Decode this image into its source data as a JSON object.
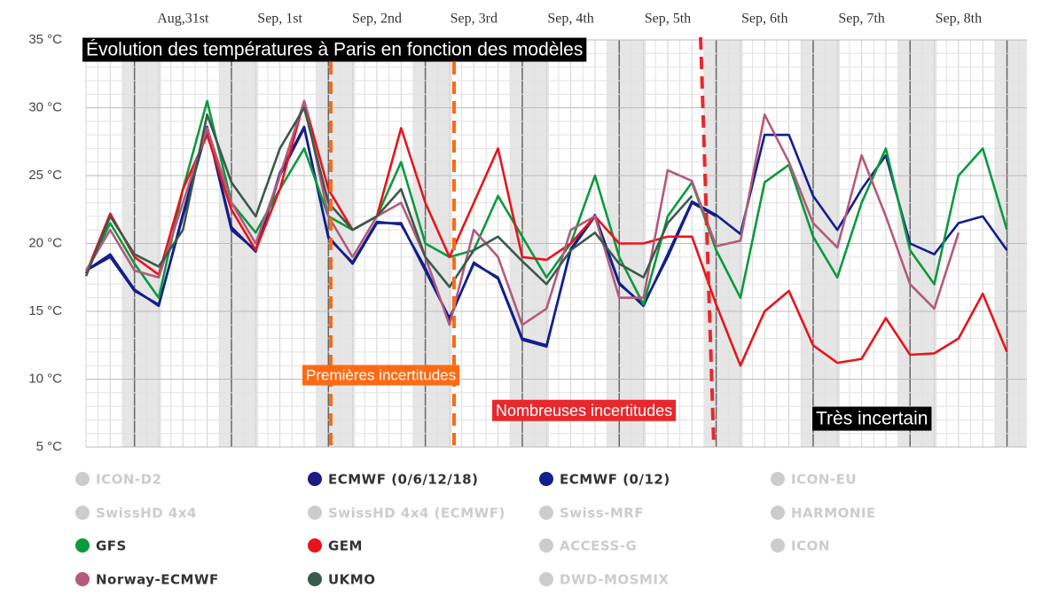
{
  "chart_data": {
    "type": "line",
    "title": "Évolution des températures à Paris en fonction des modèles",
    "annotations": [
      "Premières incertitudes",
      "Nombreuses incertitudes",
      "Très incertain"
    ],
    "categories": [
      null,
      null,
      null,
      null,
      "Aug,31st",
      null,
      null,
      null,
      "Sep, 1st",
      null,
      null,
      null,
      "Sep, 2nd",
      null,
      null,
      null,
      "Sep, 3rd",
      null,
      null,
      null,
      "Sep, 4th",
      null,
      null,
      null,
      "Sep, 5th",
      null,
      null,
      null,
      "Sep, 6th",
      null,
      null,
      null,
      "Sep, 7th",
      null,
      null,
      null,
      "Sep, 8th",
      null,
      null
    ],
    "ylim": [
      5,
      35
    ],
    "yticks": [
      {
        "value": 5,
        "label": "5 °C"
      },
      {
        "value": 10,
        "label": "10 °C"
      },
      {
        "value": 15,
        "label": "15 °C"
      },
      {
        "value": 20,
        "label": "20 °C"
      },
      {
        "value": 25,
        "label": "25 °C"
      },
      {
        "value": 30,
        "label": "30 °C"
      },
      {
        "value": 35,
        "label": "35 °C"
      }
    ],
    "grid": true,
    "series": [
      {
        "name": "ICON-D2",
        "color": "#cccccc",
        "visible": false
      },
      {
        "name": "ECMWF (0/6/12/18)",
        "color": "#1b1b86",
        "visible": true,
        "values": [
          18,
          19,
          16.5,
          15.5,
          22,
          28.5,
          21,
          19.5,
          25,
          28.5,
          20.5,
          18.5,
          21.5,
          21.5,
          18,
          14.5,
          18.5,
          17.5,
          13,
          12.5,
          19.5,
          22,
          17,
          15.5,
          19,
          23,
          22,
          null,
          null,
          null,
          null,
          null,
          null,
          null,
          null,
          null,
          null,
          null,
          null
        ]
      },
      {
        "name": "ECMWF (0/12)",
        "color": "#10208c",
        "visible": true,
        "values": [
          18,
          19.2,
          16.6,
          15.4,
          22.2,
          28.6,
          21.2,
          19.4,
          25.2,
          28.6,
          20.4,
          18.6,
          21.6,
          21.4,
          18.2,
          14.4,
          18.6,
          17.4,
          12.9,
          12.4,
          19.6,
          22.1,
          17.1,
          15.4,
          19.2,
          23.1,
          22.1,
          20.7,
          28,
          28,
          23.5,
          21,
          24,
          26.5,
          20,
          19.2,
          21.5,
          22,
          19.5
        ]
      },
      {
        "name": "ICON-EU",
        "color": "#cccccc",
        "visible": false
      },
      {
        "name": "SwissHD 4x4",
        "color": "#cccccc",
        "visible": false
      },
      {
        "name": "SwissHD 4x4 (ECMWF)",
        "color": "#cccccc",
        "visible": false
      },
      {
        "name": "Swiss-MRF",
        "color": "#cccccc",
        "visible": false
      },
      {
        "name": "HARMONIE",
        "color": "#cccccc",
        "visible": false
      },
      {
        "name": "GFS",
        "color": "#0b9a3c",
        "visible": true,
        "values": [
          17.8,
          21.5,
          18.5,
          16,
          24,
          30.5,
          23,
          20.8,
          24,
          27,
          22,
          21,
          22,
          26,
          20,
          19,
          19.5,
          23.5,
          20.5,
          17.5,
          20,
          25,
          19,
          15.5,
          22,
          24.5,
          19.5,
          16,
          24.5,
          25.8,
          20.5,
          17.5,
          23,
          27,
          19.5,
          17,
          25,
          27,
          21
        ]
      },
      {
        "name": "GEM",
        "color": "#e8141a",
        "visible": true,
        "values": [
          17.8,
          22.2,
          19,
          17.7,
          24,
          28,
          22.5,
          19.5,
          24,
          30.5,
          24,
          21,
          22,
          28.5,
          23,
          19,
          23,
          27,
          19,
          18.8,
          20,
          22,
          20,
          20,
          20.5,
          20.5,
          15.5,
          11,
          15,
          16.5,
          12.5,
          11.2,
          11.5,
          14.5,
          11.8,
          11.9,
          13,
          16.3,
          12
        ]
      },
      {
        "name": "ACCESS-G",
        "color": "#cccccc",
        "visible": false
      },
      {
        "name": "ICON",
        "color": "#cccccc",
        "visible": false
      },
      {
        "name": "Norway-ECMWF",
        "color": "#b35a7e",
        "visible": true,
        "values": [
          18,
          21,
          18,
          17.5,
          23,
          28.5,
          23,
          20,
          25,
          30.5,
          22,
          19,
          22,
          23,
          19,
          14,
          21,
          19,
          14,
          15.2,
          21,
          22,
          16,
          16,
          25.4,
          24.6,
          19.8,
          20.2,
          29.5,
          26,
          21.5,
          19.7,
          26.5,
          22,
          17,
          15.2,
          20.8,
          null,
          null
        ]
      },
      {
        "name": "UKMO",
        "color": "#3a5a4b",
        "visible": true,
        "values": [
          17.6,
          22,
          19.2,
          18.3,
          21,
          29.5,
          24.5,
          22,
          27,
          30,
          23,
          21,
          22,
          24,
          19,
          16.8,
          19.5,
          20.5,
          18.7,
          17,
          19.5,
          20.8,
          18.5,
          17.5,
          21.5,
          23.5,
          null,
          null,
          null,
          null,
          null,
          null,
          null,
          null,
          null,
          null,
          null,
          null,
          null
        ]
      },
      {
        "name": "DWD-MOSMIX",
        "color": "#cccccc",
        "visible": false
      }
    ]
  }
}
